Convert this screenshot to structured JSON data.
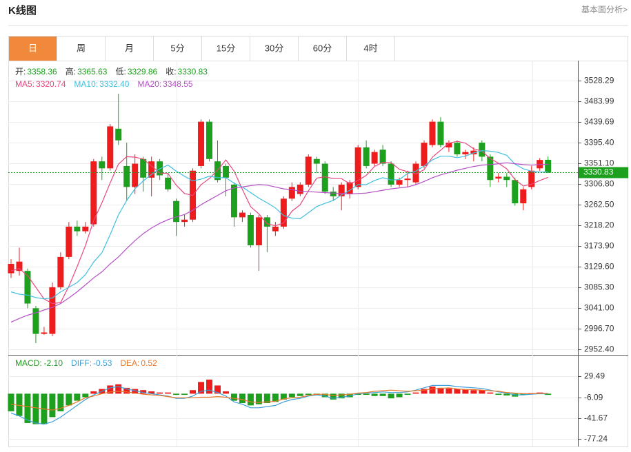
{
  "header": {
    "title": "K线图",
    "link": "基本面分析>"
  },
  "tabs": [
    "日",
    "周",
    "月",
    "5分",
    "15分",
    "30分",
    "60分",
    "4时"
  ],
  "active_tab": 0,
  "chart_data": [
    {
      "type": "candlestick",
      "up_color": "#ee1c1c",
      "down_color": "#1da01d",
      "open": [
        3115,
        3120,
        3120,
        3040,
        2985,
        2985,
        3085,
        3150,
        3215,
        3205,
        3220,
        3355,
        3340,
        3425,
        3345,
        3300,
        3360,
        3320,
        3355,
        3320,
        3270,
        3225,
        3230,
        3345,
        3440,
        3355,
        3345,
        3305,
        3235,
        3240,
        3175,
        3235,
        3205,
        3215,
        3275,
        3285,
        3305,
        3360,
        3350,
        3290,
        3280,
        3285,
        3300,
        3385,
        3350,
        3380,
        3350,
        3305,
        3315,
        3310,
        3345,
        3390,
        3440,
        3385,
        3395,
        3370,
        3370,
        3395,
        3365,
        3318,
        3322,
        3315,
        3265,
        3300,
        3340,
        3358.36
      ],
      "high": [
        3145,
        3170,
        3125,
        3045,
        3000,
        3095,
        3160,
        3225,
        3228,
        3225,
        3360,
        3365,
        3435,
        3500,
        3395,
        3370,
        3365,
        3365,
        3360,
        3330,
        3275,
        3240,
        3340,
        3445,
        3445,
        3400,
        3350,
        3310,
        3250,
        3245,
        3240,
        3240,
        3225,
        3280,
        3310,
        3310,
        3370,
        3365,
        3355,
        3300,
        3310,
        3315,
        3390,
        3400,
        3380,
        3390,
        3355,
        3320,
        3335,
        3355,
        3400,
        3445,
        3450,
        3400,
        3400,
        3380,
        3385,
        3400,
        3370,
        3330,
        3330,
        3320,
        3300,
        3345,
        3362,
        3365.63
      ],
      "low": [
        3105,
        3110,
        3040,
        2965,
        2983,
        2980,
        3080,
        3145,
        3195,
        3200,
        3215,
        3315,
        3335,
        3390,
        3270,
        3285,
        3290,
        3280,
        3315,
        3290,
        3195,
        3215,
        3225,
        3340,
        3355,
        3310,
        3280,
        3215,
        3225,
        3170,
        3120,
        3160,
        3195,
        3210,
        3270,
        3280,
        3300,
        3330,
        3285,
        3270,
        3250,
        3275,
        3295,
        3340,
        3345,
        3345,
        3300,
        3300,
        3300,
        3305,
        3340,
        3385,
        3385,
        3375,
        3365,
        3360,
        3355,
        3355,
        3300,
        3310,
        3300,
        3260,
        3250,
        3295,
        3335,
        3329.86
      ],
      "close": [
        3135,
        3140,
        3050,
        2985,
        2988,
        3085,
        3150,
        3215,
        3205,
        3215,
        3355,
        3340,
        3430,
        3400,
        3300,
        3350,
        3320,
        3355,
        3325,
        3295,
        3225,
        3230,
        3335,
        3440,
        3360,
        3315,
        3320,
        3235,
        3245,
        3175,
        3235,
        3215,
        3215,
        3275,
        3300,
        3305,
        3365,
        3350,
        3290,
        3280,
        3305,
        3310,
        3385,
        3345,
        3375,
        3350,
        3305,
        3315,
        3318,
        3350,
        3395,
        3440,
        3390,
        3395,
        3370,
        3375,
        3378,
        3365,
        3315,
        3322,
        3315,
        3265,
        3295,
        3335,
        3358,
        3330.83
      ],
      "series": [
        {
          "label": "MA5:",
          "value_label": "3320.74",
          "color": "#e8467c",
          "values": [
            3120,
            3125,
            3110,
            3085,
            3060,
            3050,
            3052,
            3087,
            3129,
            3174,
            3228,
            3266,
            3309,
            3349,
            3365,
            3364,
            3360,
            3345,
            3330,
            3329,
            3304,
            3286,
            3282,
            3305,
            3318,
            3336,
            3358,
            3334,
            3295,
            3258,
            3242,
            3221,
            3217,
            3223,
            3248,
            3262,
            3292,
            3319,
            3322,
            3318,
            3318,
            3307,
            3314,
            3325,
            3344,
            3353,
            3352,
            3338,
            3333,
            3328,
            3337,
            3364,
            3379,
            3394,
            3398,
            3394,
            3382,
            3377,
            3361,
            3351,
            3339,
            3316,
            3302,
            3306,
            3314,
            3320.74
          ]
        },
        {
          "label": "MA10:",
          "value_label": "3332.40",
          "color": "#3fbfdf",
          "values": [
            3075,
            3070,
            3068,
            3063,
            3060,
            3062,
            3075,
            3085,
            3095,
            3112,
            3139,
            3159,
            3198,
            3240,
            3271,
            3296,
            3313,
            3327,
            3339,
            3347,
            3334,
            3323,
            3313,
            3317,
            3323,
            3320,
            3320,
            3308,
            3300,
            3288,
            3276,
            3266,
            3255,
            3239,
            3233,
            3232,
            3245,
            3258,
            3265,
            3271,
            3283,
            3293,
            3305,
            3305,
            3314,
            3320,
            3315,
            3316,
            3329,
            3334,
            3345,
            3358,
            3366,
            3366,
            3363,
            3366,
            3373,
            3378,
            3377,
            3374,
            3368,
            3349,
            3339,
            3334,
            3332,
            3332.4
          ]
        },
        {
          "label": "MA20:",
          "value_label": "3348.55",
          "color": "#b44fc6",
          "values": [
            3010,
            3018,
            3025,
            3030,
            3036,
            3042,
            3050,
            3062,
            3075,
            3090,
            3105,
            3118,
            3135,
            3150,
            3168,
            3185,
            3200,
            3212,
            3222,
            3230,
            3236,
            3241,
            3250,
            3262,
            3272,
            3282,
            3292,
            3298,
            3300,
            3303,
            3305,
            3304,
            3300,
            3296,
            3294,
            3291,
            3290,
            3289,
            3288,
            3287,
            3286,
            3285,
            3286,
            3287,
            3290,
            3293,
            3296,
            3298,
            3300,
            3305,
            3312,
            3320,
            3326,
            3331,
            3336,
            3340,
            3344,
            3347,
            3348,
            3350,
            3352,
            3350,
            3348,
            3347,
            3348,
            3348.55
          ]
        }
      ],
      "readout": [
        {
          "label": "开:",
          "value_label": "3358.36"
        },
        {
          "label": "高:",
          "value_label": "3365.63"
        },
        {
          "label": "低:",
          "value_label": "3329.86"
        },
        {
          "label": "收:",
          "value_label": "3330.83"
        }
      ],
      "readout_color": "#1da01d",
      "ylim": [
        2940,
        3571
      ],
      "yticks": [
        3528.29,
        3483.99,
        3439.69,
        {
          "value": 3395.4,
          "label": "3395.40"
        },
        {
          "value": 3351.1,
          "label": "3351.10"
        },
        {
          "value": 3306.8,
          "label": "3306.80"
        },
        {
          "value": 3262.5,
          "label": "3262.50"
        },
        {
          "value": 3218.2,
          "label": "3218.20"
        },
        {
          "value": 3173.9,
          "label": "3173.90"
        },
        {
          "value": 3129.6,
          "label": "3129.60"
        },
        {
          "value": 3085.3,
          "label": "3085.30"
        },
        {
          "value": 3041,
          "label": "3041.00"
        },
        {
          "value": 2996.7,
          "label": "2996.70"
        },
        {
          "value": 2952.4,
          "label": "2952.40"
        }
      ],
      "grid": true
    },
    {
      "type": "macd",
      "up_color": "#ee1c1c",
      "down_color": "#1da01d",
      "hist": {
        "label": "MACD:",
        "value_label": "-2.10",
        "color": "#1da01d",
        "values": [
          -30,
          -38,
          -50,
          -52,
          -52,
          -40,
          -30,
          -20,
          -12,
          -6,
          4,
          8,
          14,
          16,
          10,
          8,
          6,
          4,
          2,
          2,
          -2,
          -2,
          6,
          20,
          24,
          14,
          4,
          -12,
          -16,
          -20,
          -18,
          -16,
          -14,
          -10,
          -6,
          -4,
          -2,
          -2,
          -6,
          -10,
          -8,
          -6,
          -2,
          -2,
          -4,
          -4,
          -8,
          -6,
          -2,
          2,
          8,
          12,
          10,
          9,
          8,
          7,
          6,
          6,
          2,
          -2,
          -3,
          -5,
          -2,
          1,
          2,
          -2.1
        ]
      },
      "series": [
        {
          "label": "DIFF:",
          "value_label": "-0.53",
          "color": "#3ea0d8",
          "values": [
            -33,
            -38,
            -45,
            -50,
            -52,
            -48,
            -40,
            -30,
            -20,
            -10,
            -2,
            4,
            10,
            12,
            8,
            5,
            2,
            0,
            -2,
            -4,
            -8,
            -8,
            -4,
            4,
            6,
            2,
            -4,
            -14,
            -18,
            -24,
            -24,
            -22,
            -20,
            -14,
            -10,
            -8,
            -4,
            -2,
            -4,
            -8,
            -6,
            -4,
            0,
            1,
            2,
            3,
            2,
            2,
            3,
            6,
            10,
            14,
            14,
            14,
            12,
            11,
            10,
            9,
            6,
            3,
            1,
            -2,
            -2,
            -1,
            0,
            -0.53
          ]
        },
        {
          "label": "DEA:",
          "value_label": "0.52",
          "color": "#e8772a",
          "values": [
            -18,
            -20,
            -22,
            -24,
            -26,
            -28,
            -25,
            -20,
            -14,
            -7,
            -4,
            0,
            3,
            4,
            3,
            1,
            -1,
            -2,
            -3,
            -5,
            -7,
            -7,
            -7,
            -6,
            -6,
            -5,
            -6,
            -8,
            -10,
            -14,
            -15,
            -14,
            -13,
            -9,
            -7,
            -6,
            -3,
            -1,
            -1,
            -3,
            -2,
            -1,
            1,
            2,
            4,
            5,
            6,
            5,
            4,
            5,
            6,
            8,
            9,
            10,
            8,
            7,
            7,
            6,
            5,
            4,
            2,
            1,
            0,
            0,
            0.5,
            0.52
          ]
        }
      ],
      "ylim": [
        -90,
        65
      ],
      "yticks": [
        29.49,
        -6.09,
        -41.67,
        -77.24
      ],
      "grid": true
    }
  ]
}
